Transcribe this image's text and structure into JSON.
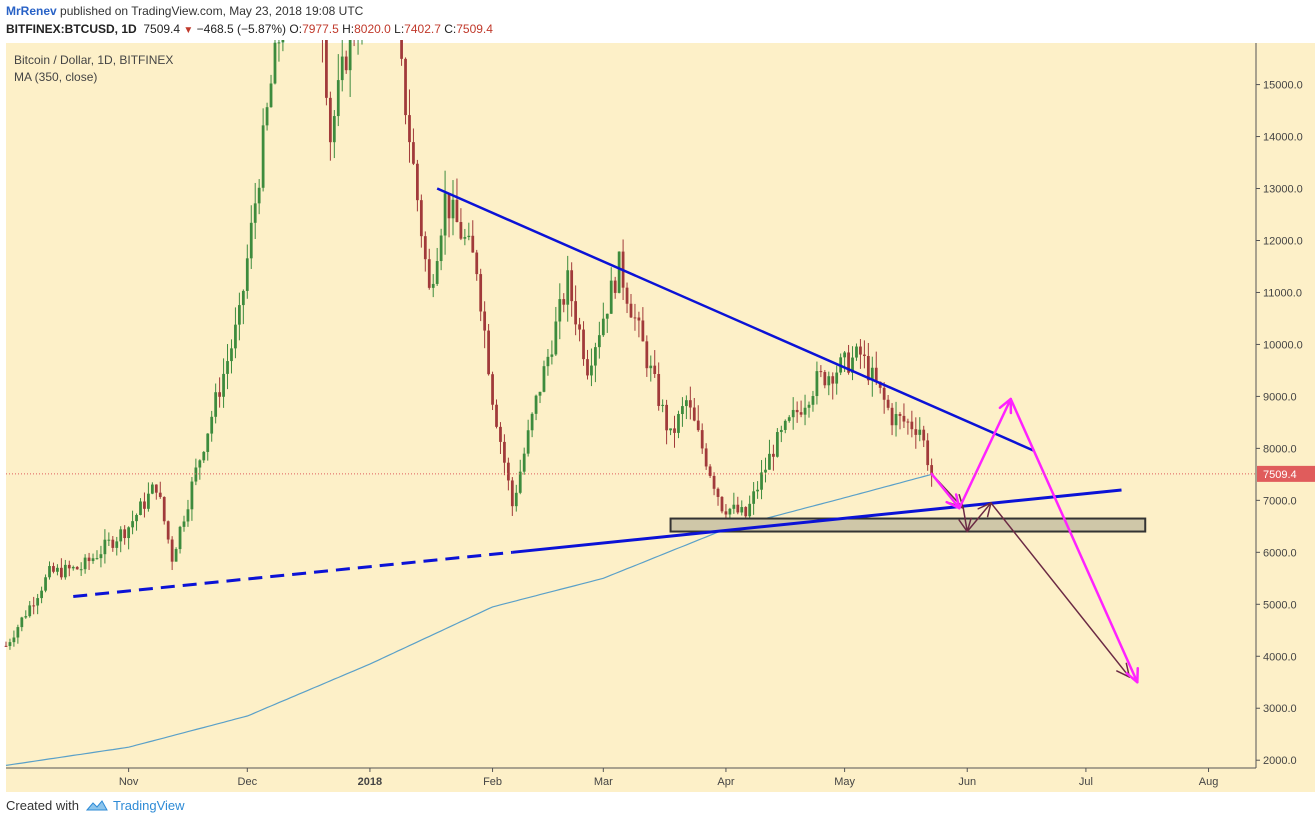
{
  "header": {
    "author": "MrRenev",
    "published_text": "published on TradingView.com, May 23, 2018 19:08 UTC",
    "symbol": "BITFINEX:BTCUSD, 1D",
    "last": "7509.4",
    "change": "−468.5 (−5.87%)",
    "o_label": "O:",
    "o": "7977.5",
    "h_label": "H:",
    "h": "8020.0",
    "l_label": "L:",
    "l": "7402.7",
    "c_label": "C:",
    "c": "7509.4"
  },
  "legend": {
    "title": "Bitcoin / Dollar, 1D, BITFINEX",
    "indicator": "MA (350, close)"
  },
  "footer": {
    "created_with": "Created with",
    "brand": "TradingView"
  },
  "colors": {
    "background": "#fdf0c8",
    "up_candle": "#3d8b3d",
    "down_candle": "#a13a3a",
    "trendline": "#0b12d6",
    "ma": "#5aa0c8",
    "magenta": "#ff22ff",
    "dark_arrow": "#6b2a44",
    "price_label": "#e05c5c",
    "zone_fill": "#cfc7a8"
  },
  "chart_data": {
    "type": "candlestick",
    "title": "Bitcoin / Dollar, 1D, BITFINEX",
    "y_axis": {
      "ylim": [
        1850,
        15800
      ],
      "ticks": [
        2000,
        3000,
        4000,
        5000,
        6000,
        7000,
        8000,
        9000,
        10000,
        11000,
        12000,
        13000,
        14000,
        15000
      ],
      "labels": [
        "2000.0",
        "3000.0",
        "4000.0",
        "5000.0",
        "6000.0",
        "7000.0",
        "8000.0",
        "9000.0",
        "10000.0",
        "11000.0",
        "12000.0",
        "13000.0",
        "14000.0",
        "15000.0"
      ],
      "position": "right"
    },
    "x_axis": {
      "range": [
        "2017-10-01",
        "2018-08-13"
      ],
      "ticks": [
        "2017-11-01",
        "2017-12-01",
        "2018-01-01",
        "2018-02-01",
        "2018-03-01",
        "2018-04-01",
        "2018-05-01",
        "2018-06-01",
        "2018-07-01",
        "2018-08-01"
      ],
      "labels": [
        "Nov",
        "Dec",
        "2018",
        "Feb",
        "Mar",
        "Apr",
        "May",
        "Jun",
        "Jul",
        "Aug"
      ]
    },
    "last_price": 7509.4,
    "price_waypoints": [
      [
        "2017-10-01",
        4200
      ],
      [
        "2017-10-12",
        5600
      ],
      [
        "2017-10-20",
        5700
      ],
      [
        "2017-11-01",
        6500
      ],
      [
        "2017-11-08",
        7300
      ],
      [
        "2017-11-12",
        5900
      ],
      [
        "2017-11-20",
        8100
      ],
      [
        "2017-11-29",
        10500
      ],
      [
        "2017-12-07",
        15000
      ],
      [
        "2017-12-17",
        19500
      ],
      [
        "2017-12-22",
        14000
      ],
      [
        "2017-12-27",
        16000
      ],
      [
        "2018-01-06",
        17000
      ],
      [
        "2018-01-16",
        11000
      ],
      [
        "2018-01-20",
        12800
      ],
      [
        "2018-01-28",
        11500
      ],
      [
        "2018-02-01",
        9000
      ],
      [
        "2018-02-06",
        6900
      ],
      [
        "2018-02-12",
        8900
      ],
      [
        "2018-02-20",
        11200
      ],
      [
        "2018-02-25",
        9600
      ],
      [
        "2018-03-05",
        11500
      ],
      [
        "2018-03-18",
        8200
      ],
      [
        "2018-03-22",
        8900
      ],
      [
        "2018-03-31",
        6900
      ],
      [
        "2018-04-06",
        6700
      ],
      [
        "2018-04-13",
        8000
      ],
      [
        "2018-04-24",
        9300
      ],
      [
        "2018-05-05",
        9800
      ],
      [
        "2018-05-13",
        8600
      ],
      [
        "2018-05-20",
        8400
      ],
      [
        "2018-05-23",
        7509.4
      ]
    ],
    "ma350_waypoints": [
      [
        "2017-10-01",
        1900
      ],
      [
        "2017-11-01",
        2250
      ],
      [
        "2017-12-01",
        2850
      ],
      [
        "2018-01-01",
        3850
      ],
      [
        "2018-02-01",
        4950
      ],
      [
        "2018-03-01",
        5500
      ],
      [
        "2018-04-01",
        6450
      ],
      [
        "2018-05-01",
        7050
      ],
      [
        "2018-05-23",
        7500
      ]
    ],
    "drawings": {
      "resistance_line": [
        [
          "2018-01-18",
          13000
        ],
        [
          "2018-06-18",
          7950
        ]
      ],
      "support_line": [
        [
          "2018-02-06",
          6000
        ],
        [
          "2018-07-10",
          7200
        ]
      ],
      "support_extension_dashed": [
        [
          "2017-10-18",
          5150
        ],
        [
          "2018-02-06",
          6000
        ]
      ],
      "support_zone": {
        "from": "2018-03-18",
        "to": "2018-07-16",
        "low": 6400,
        "high": 6650
      },
      "scenario_magenta": [
        [
          "2018-05-23",
          7509.4
        ],
        [
          "2018-05-30",
          6850
        ],
        [
          "2018-06-12",
          8950
        ],
        [
          "2018-07-14",
          3500
        ]
      ],
      "scenario_dark": [
        [
          "2018-05-23",
          7509.4
        ],
        [
          "2018-05-31",
          6850
        ],
        [
          "2018-06-01",
          6400
        ],
        [
          "2018-06-07",
          6950
        ],
        [
          "2018-07-12",
          3600
        ]
      ]
    },
    "grid": false,
    "legend_position": "top-left"
  }
}
